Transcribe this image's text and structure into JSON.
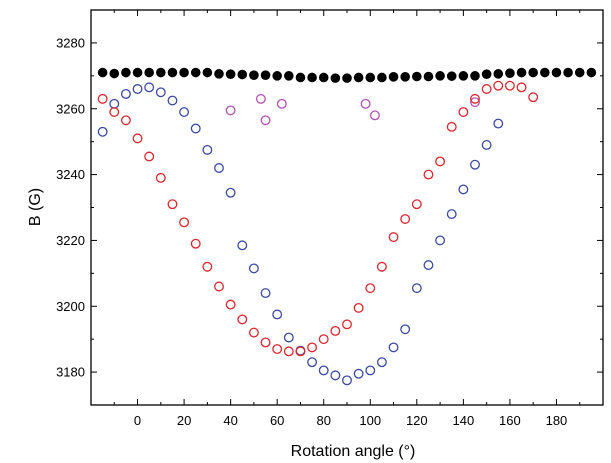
{
  "chart_data": {
    "type": "scatter",
    "xlabel": "Rotation angle (°)",
    "ylabel": "B (G)",
    "xlim": [
      -20,
      200
    ],
    "ylim": [
      3170,
      3290
    ],
    "x_ticks": [
      0,
      20,
      40,
      60,
      80,
      100,
      120,
      140,
      160,
      180
    ],
    "y_ticks": [
      3180,
      3200,
      3220,
      3240,
      3260,
      3280
    ],
    "grid": false,
    "legend": "none",
    "series": [
      {
        "color": "#000000",
        "marker": "filled-circle",
        "points": [
          [
            -15,
            3271
          ],
          [
            -10,
            3270.7
          ],
          [
            -5,
            3271
          ],
          [
            0,
            3271
          ],
          [
            5,
            3271
          ],
          [
            10,
            3271
          ],
          [
            15,
            3271
          ],
          [
            20,
            3271
          ],
          [
            25,
            3271
          ],
          [
            30,
            3271
          ],
          [
            35,
            3270.6
          ],
          [
            40,
            3270.5
          ],
          [
            45,
            3270.4
          ],
          [
            50,
            3270.2
          ],
          [
            55,
            3270.2
          ],
          [
            60,
            3270
          ],
          [
            65,
            3270
          ],
          [
            70,
            3269.5
          ],
          [
            75,
            3269.5
          ],
          [
            80,
            3269.5
          ],
          [
            85,
            3269.3
          ],
          [
            90,
            3269.3
          ],
          [
            95,
            3269.5
          ],
          [
            100,
            3269.5
          ],
          [
            105,
            3269.5
          ],
          [
            110,
            3269.7
          ],
          [
            115,
            3269.7
          ],
          [
            120,
            3269.8
          ],
          [
            125,
            3269.8
          ],
          [
            130,
            3270
          ],
          [
            135,
            3269.9
          ],
          [
            140,
            3270
          ],
          [
            145,
            3270
          ],
          [
            150,
            3270.5
          ],
          [
            155,
            3270.6
          ],
          [
            160,
            3270.8
          ],
          [
            165,
            3271
          ],
          [
            170,
            3271
          ],
          [
            175,
            3271
          ],
          [
            180,
            3271
          ],
          [
            185,
            3271
          ],
          [
            190,
            3271
          ],
          [
            195,
            3271
          ]
        ]
      },
      {
        "color": "#d9262c",
        "marker": "open-circle",
        "points": [
          [
            -15,
            3263
          ],
          [
            -10,
            3259
          ],
          [
            -5,
            3256.5
          ],
          [
            0,
            3251
          ],
          [
            5,
            3245.5
          ],
          [
            10,
            3239
          ],
          [
            15,
            3231
          ],
          [
            20,
            3225.5
          ],
          [
            25,
            3219
          ],
          [
            30,
            3212
          ],
          [
            35,
            3206
          ],
          [
            40,
            3200.5
          ],
          [
            45,
            3196
          ],
          [
            50,
            3192
          ],
          [
            55,
            3189
          ],
          [
            60,
            3187
          ],
          [
            65,
            3186.3
          ],
          [
            70,
            3186.3
          ],
          [
            75,
            3187.5
          ],
          [
            80,
            3190
          ],
          [
            85,
            3192.5
          ],
          [
            90,
            3194.5
          ],
          [
            95,
            3199.5
          ],
          [
            100,
            3205.5
          ],
          [
            105,
            3212
          ],
          [
            110,
            3221
          ],
          [
            115,
            3226.5
          ],
          [
            120,
            3231
          ],
          [
            125,
            3240
          ],
          [
            130,
            3244
          ],
          [
            135,
            3254.5
          ],
          [
            140,
            3259
          ],
          [
            145,
            3263
          ],
          [
            150,
            3266
          ],
          [
            155,
            3267
          ],
          [
            160,
            3267
          ],
          [
            165,
            3266.5
          ],
          [
            170,
            3263.5
          ]
        ]
      },
      {
        "color": "#3a4aa0",
        "marker": "open-circle",
        "points": [
          [
            -15,
            3253
          ],
          [
            -10,
            3261.5
          ],
          [
            -5,
            3264.5
          ],
          [
            0,
            3266
          ],
          [
            5,
            3266.5
          ],
          [
            10,
            3265
          ],
          [
            15,
            3262.5
          ],
          [
            20,
            3259
          ],
          [
            25,
            3254
          ],
          [
            30,
            3247.5
          ],
          [
            35,
            3242
          ],
          [
            40,
            3234.5
          ],
          [
            45,
            3218.5
          ],
          [
            50,
            3211.5
          ],
          [
            55,
            3204
          ],
          [
            60,
            3197.5
          ],
          [
            65,
            3190.5
          ],
          [
            70,
            3186.5
          ],
          [
            75,
            3183
          ],
          [
            80,
            3180.5
          ],
          [
            85,
            3179
          ],
          [
            90,
            3177.5
          ],
          [
            95,
            3179.5
          ],
          [
            100,
            3180.5
          ],
          [
            105,
            3183
          ],
          [
            110,
            3187.5
          ],
          [
            115,
            3193
          ],
          [
            120,
            3205.5
          ],
          [
            125,
            3212.5
          ],
          [
            130,
            3220
          ],
          [
            135,
            3228
          ],
          [
            140,
            3235.5
          ],
          [
            145,
            3243
          ],
          [
            150,
            3249
          ],
          [
            155,
            3255.5
          ]
        ]
      },
      {
        "color": "#b452b4",
        "marker": "open-circle",
        "points": [
          [
            40,
            3259.5
          ],
          [
            53,
            3263
          ],
          [
            55,
            3256.5
          ],
          [
            62,
            3261.5
          ],
          [
            98,
            3261.5
          ],
          [
            102,
            3258
          ],
          [
            145,
            3262
          ]
        ]
      }
    ]
  }
}
